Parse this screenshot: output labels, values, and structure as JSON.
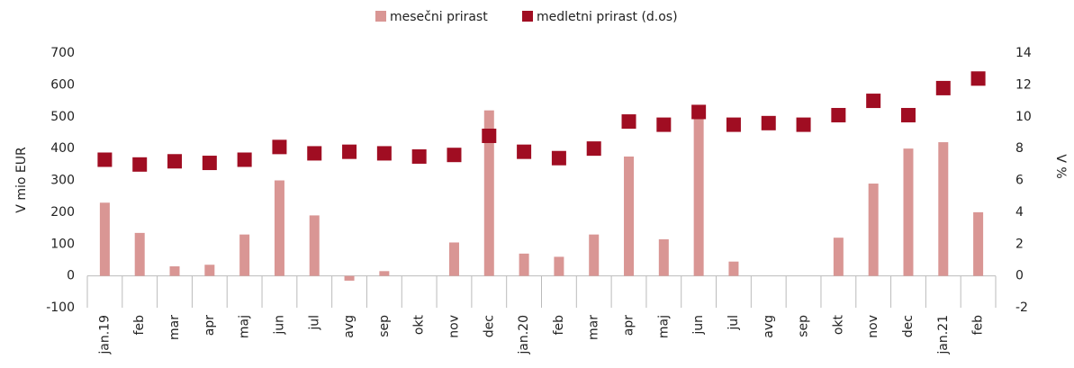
{
  "chart_data": {
    "type": "bar",
    "categories": [
      "jan.19",
      "feb",
      "mar",
      "apr",
      "maj",
      "jun",
      "jul",
      "avg",
      "sep",
      "okt",
      "nov",
      "dec",
      "jan.20",
      "feb",
      "mar",
      "apr",
      "maj",
      "jun",
      "jul",
      "avg",
      "sep",
      "okt",
      "nov",
      "dec",
      "jan.21",
      "feb"
    ],
    "series": [
      {
        "name": "mesečni prirast",
        "color": "#d99694",
        "type": "bar",
        "values": [
          230,
          135,
          30,
          35,
          130,
          300,
          190,
          -15,
          15,
          0,
          105,
          520,
          70,
          60,
          130,
          375,
          115,
          500,
          45,
          0,
          0,
          120,
          290,
          400,
          420,
          200
        ]
      },
      {
        "name": "medletni prirast (d.os)",
        "color": "#a00d22",
        "type": "scatter",
        "axis": "y2",
        "values": [
          7.3,
          7.0,
          7.2,
          7.1,
          7.3,
          8.1,
          7.7,
          7.8,
          7.7,
          7.5,
          7.6,
          8.8,
          7.8,
          7.4,
          8.0,
          9.7,
          9.5,
          10.3,
          9.5,
          9.6,
          9.5,
          10.1,
          11.0,
          10.1,
          11.8,
          12.4
        ]
      }
    ],
    "ylabel": "V mio EUR",
    "y2label": "V %",
    "ylim": [
      -100,
      700
    ],
    "yticks": [
      -100,
      0,
      100,
      200,
      300,
      400,
      500,
      600,
      700
    ],
    "y2lim": [
      -2,
      14
    ],
    "y2ticks": [
      -2,
      0,
      2,
      4,
      6,
      8,
      10,
      12,
      14
    ],
    "legend": "top"
  }
}
